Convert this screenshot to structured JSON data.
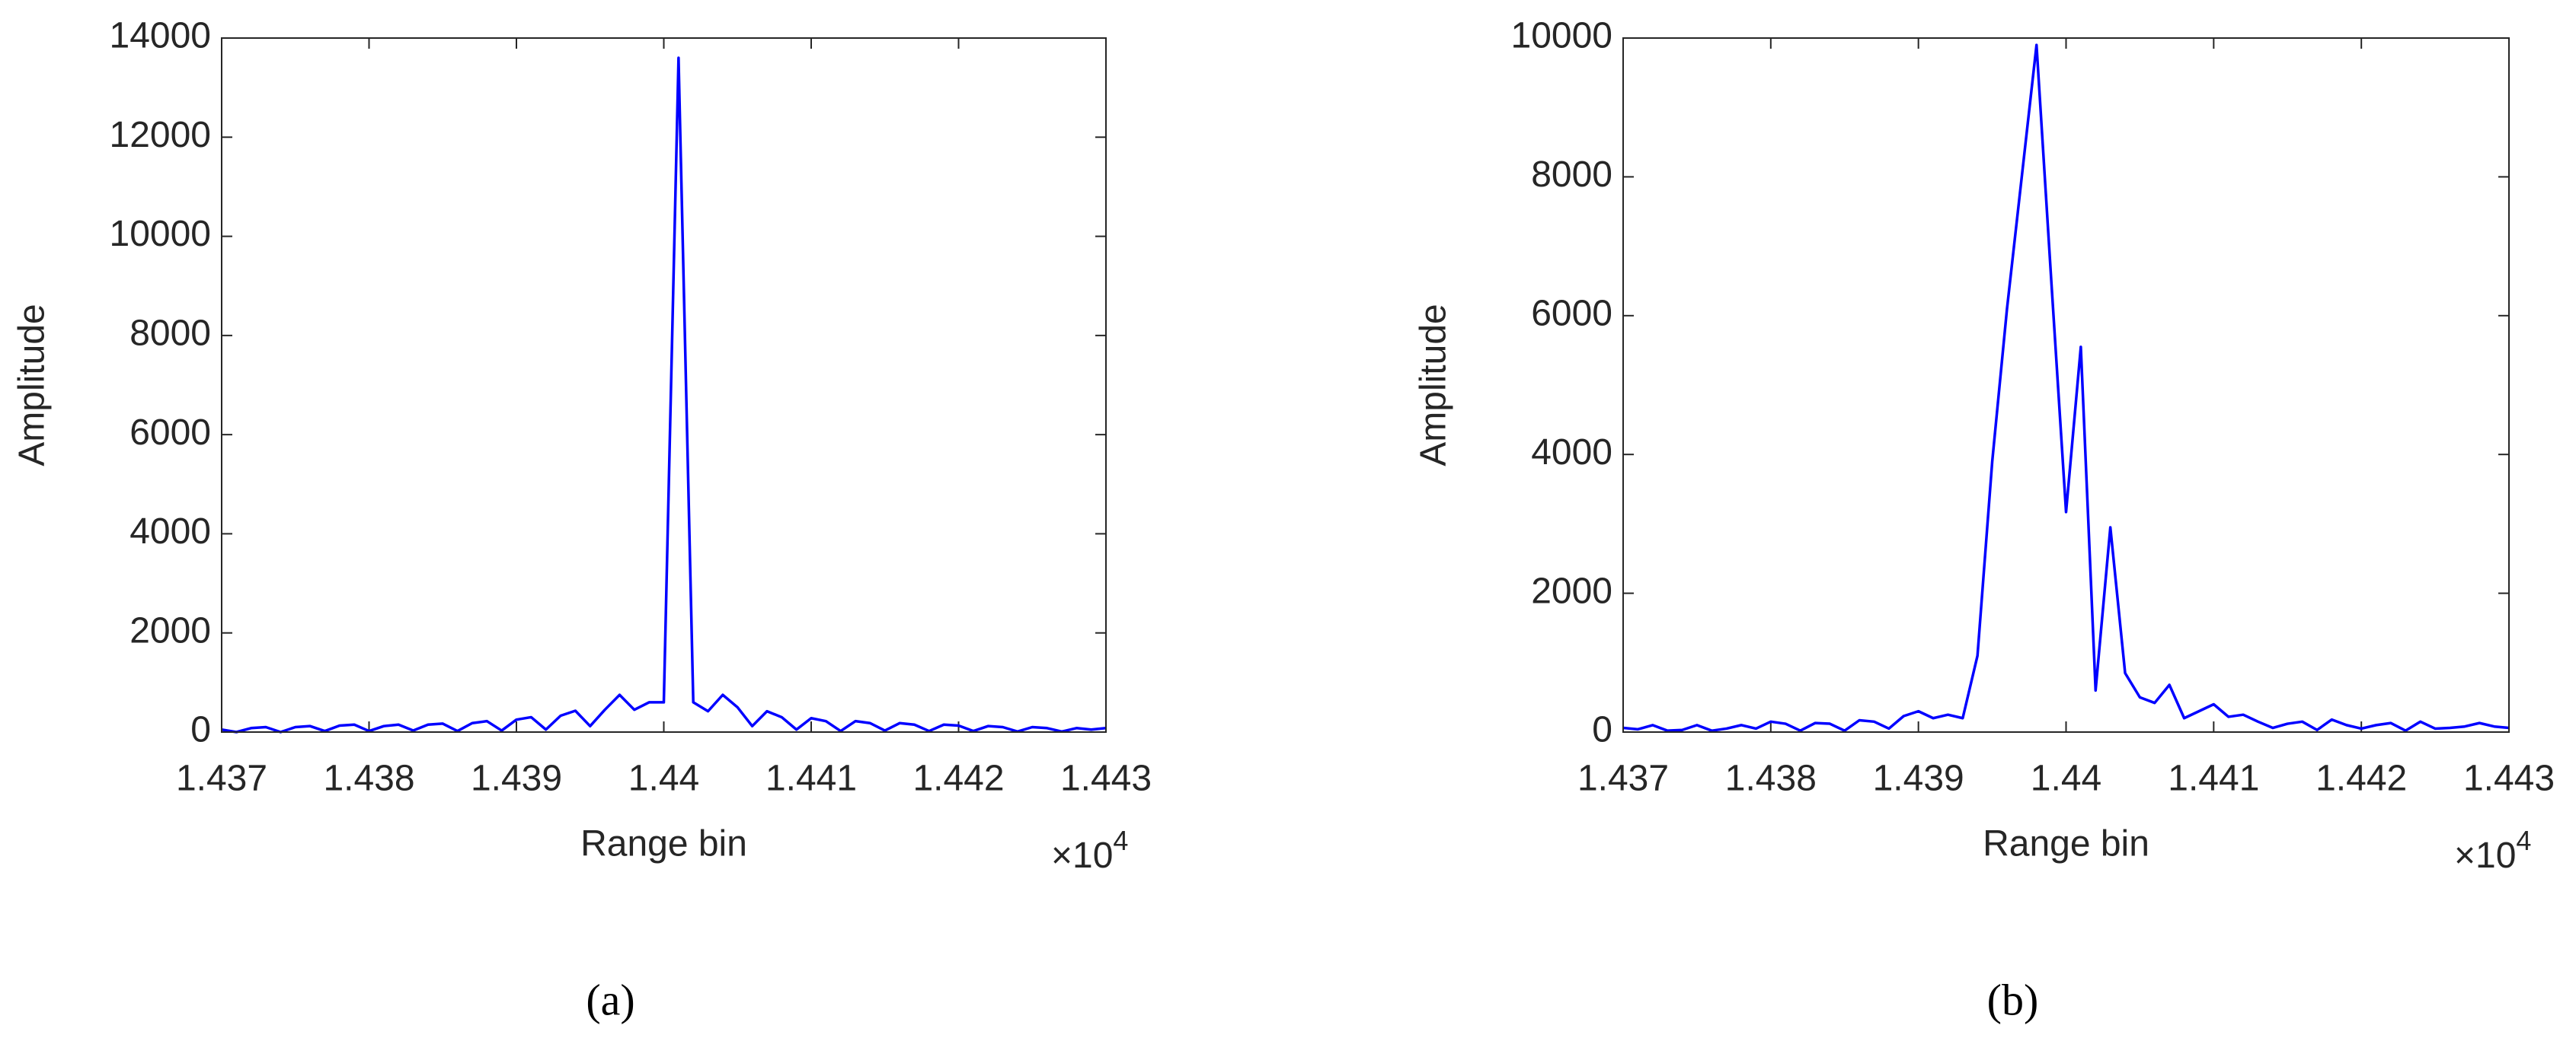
{
  "chart_data": [
    {
      "type": "line",
      "y_label": "Amplitude",
      "x_label": "Range bin",
      "x_multiplier": {
        "base": "×10",
        "exponent": "4"
      },
      "panel_label": "(a)",
      "color": "#0000ff",
      "x": [
        14370,
        14371,
        14372,
        14373,
        14374,
        14375,
        14376,
        14377,
        14378,
        14379,
        14380,
        14381,
        14382,
        14383,
        14384,
        14385,
        14386,
        14387,
        14388,
        14389,
        14390,
        14391,
        14392,
        14393,
        14394,
        14395,
        14396,
        14397,
        14398,
        14399,
        14400,
        14401,
        14402,
        14403,
        14404,
        14405,
        14406,
        14407,
        14408,
        14409,
        14410,
        14411,
        14412,
        14413,
        14414,
        14415,
        14416,
        14417,
        14418,
        14419,
        14420,
        14421,
        14422,
        14423,
        14424,
        14425,
        14426,
        14427,
        14428,
        14429,
        14430
      ],
      "values": [
        50,
        0,
        80,
        100,
        0,
        100,
        120,
        20,
        130,
        150,
        20,
        120,
        150,
        30,
        150,
        170,
        20,
        180,
        220,
        30,
        250,
        300,
        50,
        330,
        430,
        120,
        450,
        750,
        450,
        600,
        600,
        13600,
        600,
        420,
        750,
        500,
        120,
        420,
        300,
        50,
        280,
        220,
        20,
        220,
        180,
        30,
        180,
        150,
        20,
        150,
        130,
        20,
        120,
        100,
        10,
        100,
        80,
        10,
        80,
        50,
        80
      ],
      "xlim": [
        14370,
        14430
      ],
      "xticks": [
        {
          "value": 14370,
          "label": "1.437"
        },
        {
          "value": 14380,
          "label": "1.438"
        },
        {
          "value": 14390,
          "label": "1.439"
        },
        {
          "value": 14400,
          "label": "1.44"
        },
        {
          "value": 14410,
          "label": "1.441"
        },
        {
          "value": 14420,
          "label": "1.442"
        },
        {
          "value": 14430,
          "label": "1.443"
        }
      ],
      "ylim": [
        0,
        14000
      ],
      "yticks": [
        0,
        2000,
        4000,
        6000,
        8000,
        10000,
        12000,
        14000
      ],
      "grid": false
    },
    {
      "type": "line",
      "y_label": "Amplitude",
      "x_label": "Range bin",
      "x_multiplier": {
        "base": "×10",
        "exponent": "4"
      },
      "panel_label": "(b)",
      "color": "#0000ff",
      "x": [
        14370,
        14371,
        14372,
        14373,
        14374,
        14375,
        14376,
        14377,
        14378,
        14379,
        14380,
        14381,
        14382,
        14383,
        14384,
        14385,
        14386,
        14387,
        14388,
        14389,
        14390,
        14391,
        14392,
        14393,
        14394,
        14395,
        14396,
        14397,
        14398,
        14399,
        14400,
        14401,
        14402,
        14403,
        14404,
        14405,
        14406,
        14407,
        14408,
        14409,
        14410,
        14411,
        14412,
        14413,
        14414,
        14415,
        14416,
        14417,
        14418,
        14419,
        14420,
        14421,
        14422,
        14423,
        14424,
        14425,
        14426,
        14427,
        14428,
        14429,
        14430
      ],
      "values": [
        60,
        40,
        100,
        20,
        30,
        100,
        20,
        50,
        100,
        50,
        150,
        120,
        20,
        130,
        120,
        20,
        170,
        150,
        50,
        230,
        300,
        200,
        250,
        200,
        1100,
        3900,
        6100,
        8000,
        9900,
        6500,
        3170,
        5550,
        600,
        2950,
        850,
        500,
        420,
        680,
        200,
        300,
        400,
        220,
        250,
        150,
        60,
        120,
        150,
        30,
        180,
        100,
        50,
        100,
        130,
        20,
        150,
        50,
        60,
        80,
        130,
        80,
        60
      ],
      "xlim": [
        14370,
        14430
      ],
      "xticks": [
        {
          "value": 14370,
          "label": "1.437"
        },
        {
          "value": 14380,
          "label": "1.438"
        },
        {
          "value": 14390,
          "label": "1.439"
        },
        {
          "value": 14400,
          "label": "1.44"
        },
        {
          "value": 14410,
          "label": "1.441"
        },
        {
          "value": 14420,
          "label": "1.442"
        },
        {
          "value": 14430,
          "label": "1.443"
        }
      ],
      "ylim": [
        0,
        10000
      ],
      "yticks": [
        0,
        2000,
        4000,
        6000,
        8000,
        10000
      ],
      "grid": false
    }
  ]
}
